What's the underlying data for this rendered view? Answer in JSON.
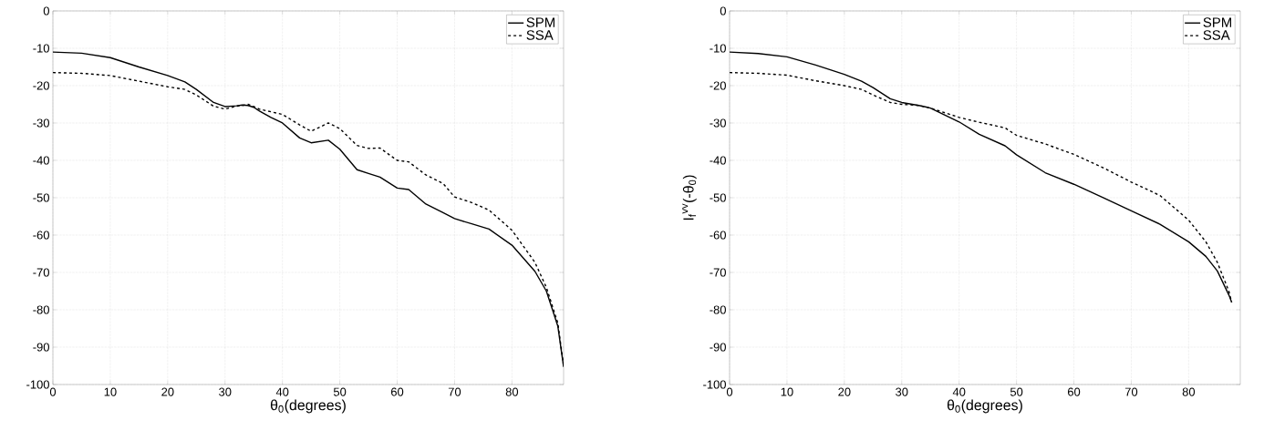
{
  "chart_data": [
    {
      "type": "line",
      "xlabel": "θ$_{0}$(degrees)",
      "xlim": [
        0,
        89
      ],
      "ylim": [
        -100,
        0
      ],
      "xticks": [
        0,
        10,
        20,
        30,
        40,
        50,
        60,
        70,
        80
      ],
      "yticks": [
        -100,
        -90,
        -80,
        -70,
        -60,
        -50,
        -40,
        -30,
        -20,
        -10,
        0
      ],
      "grid": true,
      "legend": "top right",
      "x": [
        0,
        5,
        10,
        15,
        20,
        23,
        25,
        28,
        30,
        32,
        33,
        34,
        35,
        36,
        38,
        40,
        43,
        45,
        48,
        50,
        53,
        55,
        57,
        60,
        62,
        65,
        68,
        70,
        73,
        76,
        80,
        84,
        86,
        88,
        89
      ],
      "series": [
        {
          "name": "SPM",
          "color": "#000000",
          "line_style": "solid",
          "values": [
            -11,
            -11.3,
            -12.5,
            -15,
            -17.3,
            -19,
            -21,
            -24.5,
            -25.6,
            -25.4,
            -25.2,
            -25.3,
            -25.8,
            -26.8,
            -28.5,
            -30,
            -34,
            -35.3,
            -34.6,
            -37,
            -42.5,
            -43.5,
            -44.5,
            -47.4,
            -47.8,
            -51.7,
            -54,
            -55.6,
            -57,
            -58.4,
            -62.7,
            -69.7,
            -75,
            -84.4,
            -95.3
          ]
        },
        {
          "name": "SSA",
          "color": "#000000",
          "line_style": "dashed",
          "values": [
            -16.5,
            -16.7,
            -17.3,
            -18.8,
            -20.3,
            -21,
            -22.5,
            -25.5,
            -26.3,
            -25.5,
            -25.3,
            -25,
            -25.6,
            -26.3,
            -27,
            -27.7,
            -30.5,
            -32.2,
            -30,
            -31.5,
            -36,
            -36.8,
            -36.7,
            -40,
            -40.4,
            -43.9,
            -46.2,
            -49.8,
            -51.3,
            -53.3,
            -58.7,
            -67.3,
            -74,
            -83.6,
            -95
          ]
        }
      ]
    },
    {
      "type": "line",
      "xlabel": "θ$_{0}$(degrees)",
      "ylabel": "I$_{f}$$^{vv}$(-θ$_{0}$)",
      "xlim": [
        0,
        89
      ],
      "ylim": [
        -100,
        0
      ],
      "xticks": [
        0,
        10,
        20,
        30,
        40,
        50,
        60,
        70,
        80
      ],
      "yticks": [
        -100,
        -90,
        -80,
        -70,
        -60,
        -50,
        -40,
        -30,
        -20,
        -10,
        0
      ],
      "grid": true,
      "legend": "top right",
      "x": [
        0,
        5,
        10,
        15,
        20,
        23,
        25,
        28,
        30,
        33,
        35,
        40,
        43.5,
        48,
        50,
        55,
        60,
        65,
        70,
        75,
        80,
        83,
        85,
        87,
        87.5
      ],
      "series": [
        {
          "name": "SPM",
          "color": "#000000",
          "line_style": "solid",
          "values": [
            -11,
            -11.4,
            -12.3,
            -14.5,
            -17,
            -18.8,
            -20.5,
            -23.5,
            -24.5,
            -25.3,
            -26,
            -29.7,
            -33,
            -36.1,
            -38.5,
            -43.3,
            -46.4,
            -49.9,
            -53.5,
            -57.1,
            -61.8,
            -65.7,
            -69.6,
            -76,
            -78
          ]
        },
        {
          "name": "SSA",
          "color": "#000000",
          "line_style": "dashed",
          "values": [
            -16.5,
            -16.7,
            -17.2,
            -18.7,
            -20,
            -21,
            -22.5,
            -24.5,
            -25,
            -25.3,
            -26,
            -28.5,
            -29.8,
            -31.3,
            -33.3,
            -35.6,
            -38.4,
            -41.9,
            -45.8,
            -49.4,
            -56,
            -61.8,
            -67.3,
            -75,
            -78
          ]
        }
      ]
    }
  ]
}
